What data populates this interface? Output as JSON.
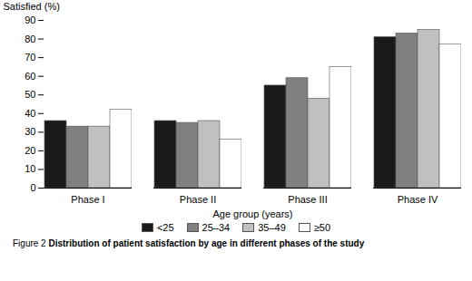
{
  "chart_data": {
    "type": "bar",
    "categories": [
      "Phase I",
      "Phase II",
      "Phase III",
      "Phase IV"
    ],
    "series": [
      {
        "name": "<25",
        "color": "#1a1a1a",
        "values": [
          36,
          36,
          55,
          81
        ]
      },
      {
        "name": "25–34",
        "color": "#808080",
        "values": [
          33,
          35,
          59,
          83
        ]
      },
      {
        "name": "35–49",
        "color": "#c0c0c0",
        "values": [
          33,
          36,
          48,
          85
        ]
      },
      {
        "name": "≥50",
        "color": "#ffffff",
        "values": [
          42,
          26,
          65,
          77
        ]
      }
    ],
    "xlabel": "Age group (years)",
    "ylabel": "Satisfied (%)",
    "ylim": [
      0,
      90
    ],
    "yticks": [
      0,
      10,
      20,
      30,
      40,
      50,
      60,
      70,
      80,
      90
    ],
    "grid": false,
    "legend": "bottom",
    "caption_prefix": "Figure 2",
    "caption": "Distribution of patient satisfaction by age in different phases of the study"
  }
}
